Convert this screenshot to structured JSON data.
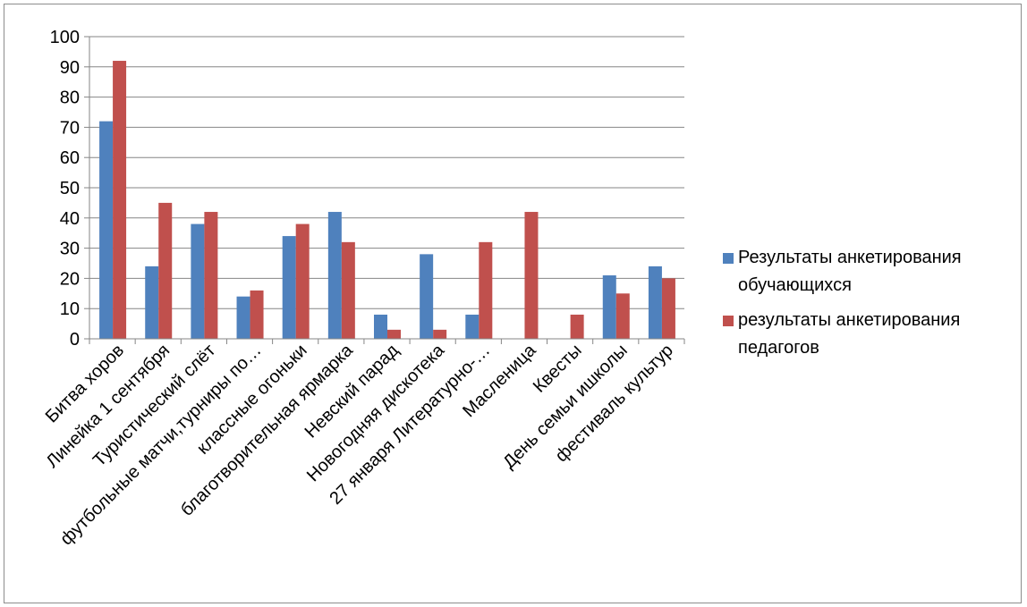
{
  "chart_data": {
    "type": "bar",
    "categories": [
      "Битва хоров",
      "Линейка 1 сентября",
      "Туристический слёт",
      "футбольные матчи,турниры по…",
      "классные огоньки",
      "благотворительная ярмарка",
      "Невский парад",
      "Новогодняя дискотека",
      "27 января Литературно-…",
      "Масленица",
      "Квесты",
      "День семьи ишколы",
      "фестиваль культур"
    ],
    "series": [
      {
        "name": "Результаты анкетирования обучающихся",
        "color": "#4f81bd",
        "values": [
          72,
          24,
          38,
          14,
          34,
          42,
          8,
          28,
          8,
          0,
          0,
          21,
          24
        ]
      },
      {
        "name": "результаты анкетирования педагогов",
        "color": "#c0504d",
        "values": [
          92,
          45,
          42,
          16,
          38,
          32,
          3,
          3,
          32,
          42,
          8,
          15,
          20
        ]
      }
    ],
    "y_ticks": [
      "0",
      "10",
      "20",
      "30",
      "40",
      "50",
      "60",
      "70",
      "80",
      "90",
      "100"
    ],
    "ylim": [
      0,
      100
    ],
    "grid": true,
    "legend_position": "right",
    "title": "",
    "xlabel": "",
    "ylabel": ""
  }
}
